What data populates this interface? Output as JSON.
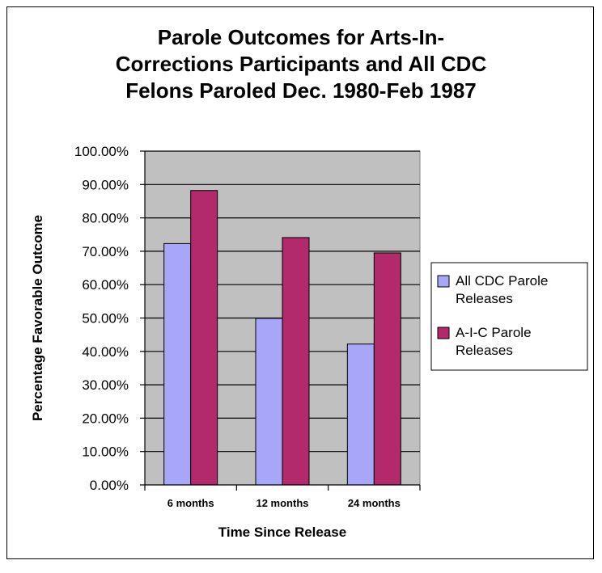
{
  "chart_data": {
    "type": "bar",
    "title_lines": [
      "Parole Outcomes for Arts-In-",
      "Corrections Participants and All CDC",
      "Felons Paroled Dec. 1980-Feb 1987"
    ],
    "categories": [
      "6 months",
      "12 months",
      "24 months"
    ],
    "series": [
      {
        "name_lines": [
          "All CDC Parole",
          "Releases"
        ],
        "color": "#a8a6f6",
        "values": [
          72.3,
          49.9,
          42.2
        ]
      },
      {
        "name_lines": [
          "A-I-C Parole",
          "Releases"
        ],
        "color": "#b22a6b",
        "values": [
          88.2,
          74.1,
          69.5
        ]
      }
    ],
    "xlabel": "Time Since Release",
    "ylabel": "Percentage Favorable Outcome",
    "ylim": [
      0,
      100
    ],
    "y_ticks": [
      "0.00%",
      "10.00%",
      "20.00%",
      "30.00%",
      "40.00%",
      "50.00%",
      "60.00%",
      "70.00%",
      "80.00%",
      "90.00%",
      "100.00%"
    ],
    "plot_background": "#c0c0c0",
    "grid": true,
    "legend_position": "right"
  }
}
